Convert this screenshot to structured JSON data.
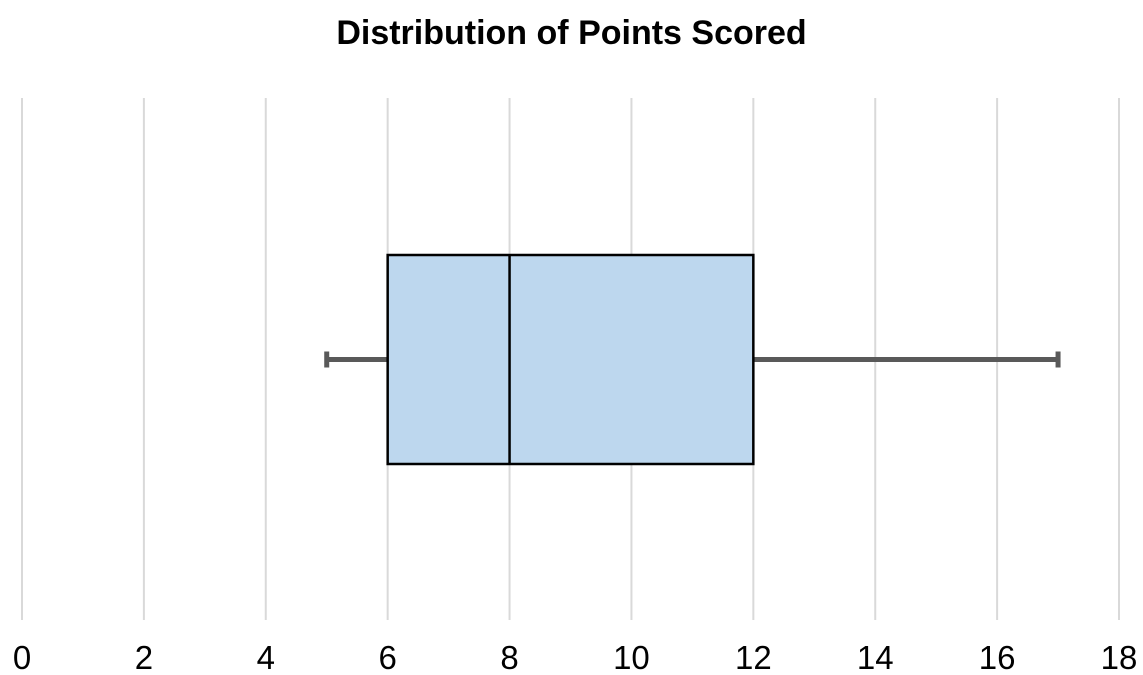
{
  "chart_data": {
    "type": "boxplot",
    "orientation": "horizontal",
    "title": "Distribution of Points Scored",
    "series": [
      {
        "name": "Points Scored",
        "min": 5,
        "q1": 6,
        "median": 8,
        "q3": 12,
        "max": 17,
        "outliers": []
      }
    ],
    "xlabel": "",
    "ylabel": "",
    "xlim": [
      0,
      18
    ],
    "x_ticks": [
      0,
      2,
      4,
      6,
      8,
      10,
      12,
      14,
      16,
      18
    ],
    "grid": "vertical-only",
    "legend": "none",
    "colors": {
      "background": "#FFFFFF",
      "box_fill": "#BDD7EE",
      "box_border": "#000000",
      "median_line": "#000000",
      "whisker": "#595959",
      "gridline": "#D9D9D9",
      "tick_text": "#000000",
      "title_text": "#000000"
    }
  }
}
